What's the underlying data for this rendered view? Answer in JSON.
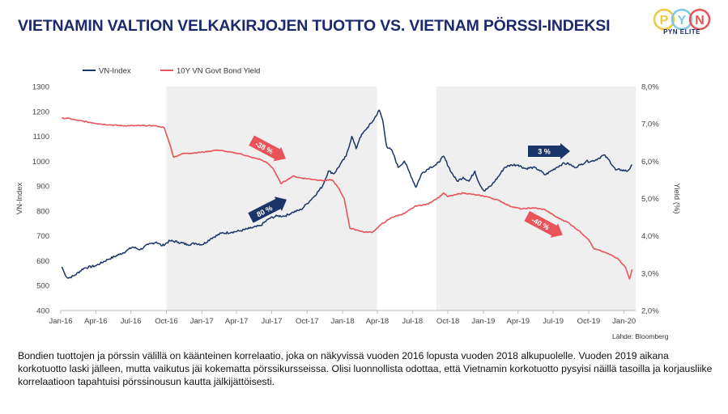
{
  "title": "VIETNAMIN VALTION VELKAKIRJOJEN TUOTTO VS. VIETNAM PÖRSSI-INDEKSI",
  "logo": {
    "letters": [
      "P",
      "Y",
      "N"
    ],
    "subtitle": "PYN ELITE",
    "colors": [
      "#f4c63d",
      "#7ec8e3",
      "#e8545a"
    ]
  },
  "source": "Lähde: Bloomberg",
  "note": "Bondien tuottojen ja pörssin välillä on käänteinen korrelaatio, joka on näkyvissä vuoden 2016 lopusta vuoden 2018 alkupuolelle. Vuoden 2019 aikana korkotuotto laski jälleen, mutta vaikutus jäi kokematta pörssikursseissa. Olisi luonnollista odottaa, että Vietnamin korkotuotto pysyisi näillä tasoilla ja korjausliike korrelaatioon tapahtuisi pörssinousun kautta jälkijättöisesti.",
  "chart_data": {
    "type": "line",
    "x_tick_labels": [
      "Jan-16",
      "Apr-16",
      "Jul-16",
      "Oct-16",
      "Jan-17",
      "Apr-17",
      "Jul-17",
      "Oct-17",
      "Jan-18",
      "Apr-18",
      "Jul-18",
      "Oct-18",
      "Jan-19",
      "Apr-19",
      "Jul-19",
      "Oct-19",
      "Jan-20"
    ],
    "x_range": [
      "2016-01-01",
      "2020-01-31"
    ],
    "ylabel_left": "VN-Index",
    "ylabel_right": "Yield (%)",
    "ylim_left": [
      400,
      1300
    ],
    "ylim_right": [
      2.0,
      8.0
    ],
    "y_left_ticks": [
      "400",
      "500",
      "600",
      "700",
      "800",
      "900",
      "1000",
      "1100",
      "1200",
      "1300"
    ],
    "y_right_ticks": [
      "2,0%",
      "3,0%",
      "4,0%",
      "5,0%",
      "6,0%",
      "7,0%",
      "8,0%"
    ],
    "legend_position": "top-left",
    "grid": false,
    "shaded_periods": [
      [
        "2016-10-01",
        "2018-03-31"
      ],
      [
        "2018-09-01",
        "2020-01-31"
      ]
    ],
    "series": [
      {
        "name": "VN-Index",
        "axis": "left",
        "color": "#1a3668",
        "points": [
          [
            "2016-01-04",
            575
          ],
          [
            "2016-01-12",
            545
          ],
          [
            "2016-01-20",
            530
          ],
          [
            "2016-02-05",
            540
          ],
          [
            "2016-03-01",
            570
          ],
          [
            "2016-04-01",
            580
          ],
          [
            "2016-05-02",
            605
          ],
          [
            "2016-06-01",
            625
          ],
          [
            "2016-06-20",
            640
          ],
          [
            "2016-07-05",
            655
          ],
          [
            "2016-07-25",
            645
          ],
          [
            "2016-08-15",
            665
          ],
          [
            "2016-09-05",
            675
          ],
          [
            "2016-09-20",
            660
          ],
          [
            "2016-10-10",
            680
          ],
          [
            "2016-11-01",
            675
          ],
          [
            "2016-11-25",
            665
          ],
          [
            "2016-12-15",
            670
          ],
          [
            "2017-01-03",
            665
          ],
          [
            "2017-01-25",
            690
          ],
          [
            "2017-02-20",
            710
          ],
          [
            "2017-03-20",
            715
          ],
          [
            "2017-04-10",
            720
          ],
          [
            "2017-05-05",
            730
          ],
          [
            "2017-06-01",
            740
          ],
          [
            "2017-06-25",
            770
          ],
          [
            "2017-07-15",
            780
          ],
          [
            "2017-08-05",
            780
          ],
          [
            "2017-08-25",
            795
          ],
          [
            "2017-09-15",
            805
          ],
          [
            "2017-10-01",
            830
          ],
          [
            "2017-10-20",
            860
          ],
          [
            "2017-11-10",
            900
          ],
          [
            "2017-11-25",
            960
          ],
          [
            "2017-12-10",
            950
          ],
          [
            "2017-12-25",
            985
          ],
          [
            "2018-01-10",
            1020
          ],
          [
            "2018-01-25",
            1100
          ],
          [
            "2018-02-05",
            1050
          ],
          [
            "2018-02-15",
            1095
          ],
          [
            "2018-03-01",
            1125
          ],
          [
            "2018-03-20",
            1160
          ],
          [
            "2018-04-06",
            1205
          ],
          [
            "2018-04-15",
            1165
          ],
          [
            "2018-04-25",
            1060
          ],
          [
            "2018-05-10",
            1040
          ],
          [
            "2018-05-25",
            975
          ],
          [
            "2018-06-10",
            1000
          ],
          [
            "2018-06-25",
            950
          ],
          [
            "2018-07-10",
            895
          ],
          [
            "2018-07-25",
            950
          ],
          [
            "2018-08-15",
            975
          ],
          [
            "2018-09-01",
            985
          ],
          [
            "2018-09-20",
            1020
          ],
          [
            "2018-10-10",
            955
          ],
          [
            "2018-10-25",
            920
          ],
          [
            "2018-11-10",
            935
          ],
          [
            "2018-11-25",
            920
          ],
          [
            "2018-12-10",
            960
          ],
          [
            "2018-12-20",
            915
          ],
          [
            "2019-01-03",
            880
          ],
          [
            "2019-01-20",
            900
          ],
          [
            "2019-02-10",
            940
          ],
          [
            "2019-02-25",
            975
          ],
          [
            "2019-03-15",
            985
          ],
          [
            "2019-04-01",
            985
          ],
          [
            "2019-04-20",
            970
          ],
          [
            "2019-05-10",
            975
          ],
          [
            "2019-05-25",
            965
          ],
          [
            "2019-06-10",
            945
          ],
          [
            "2019-06-25",
            960
          ],
          [
            "2019-07-10",
            975
          ],
          [
            "2019-07-25",
            990
          ],
          [
            "2019-08-10",
            990
          ],
          [
            "2019-08-25",
            975
          ],
          [
            "2019-09-10",
            985
          ],
          [
            "2019-09-25",
            1000
          ],
          [
            "2019-10-10",
            1000
          ],
          [
            "2019-10-25",
            1010
          ],
          [
            "2019-11-10",
            1025
          ],
          [
            "2019-11-25",
            1000
          ],
          [
            "2019-12-10",
            965
          ],
          [
            "2019-12-25",
            965
          ],
          [
            "2020-01-10",
            960
          ],
          [
            "2020-01-22",
            985
          ]
        ]
      },
      {
        "name": "10Y VN Govt Bond Yield",
        "axis": "right",
        "color": "#e8545a",
        "points": [
          [
            "2016-01-04",
            7.15
          ],
          [
            "2016-01-20",
            7.15
          ],
          [
            "2016-02-10",
            7.1
          ],
          [
            "2016-03-10",
            7.05
          ],
          [
            "2016-04-10",
            7.0
          ],
          [
            "2016-05-10",
            6.97
          ],
          [
            "2016-06-10",
            6.95
          ],
          [
            "2016-07-10",
            6.95
          ],
          [
            "2016-08-10",
            6.95
          ],
          [
            "2016-09-01",
            6.95
          ],
          [
            "2016-09-25",
            6.9
          ],
          [
            "2016-10-10",
            6.45
          ],
          [
            "2016-10-20",
            6.1
          ],
          [
            "2016-11-10",
            6.2
          ],
          [
            "2016-12-10",
            6.22
          ],
          [
            "2017-01-10",
            6.25
          ],
          [
            "2017-02-10",
            6.3
          ],
          [
            "2017-03-10",
            6.25
          ],
          [
            "2017-04-10",
            6.2
          ],
          [
            "2017-05-10",
            6.1
          ],
          [
            "2017-06-01",
            6.05
          ],
          [
            "2017-06-20",
            5.95
          ],
          [
            "2017-07-05",
            5.8
          ],
          [
            "2017-07-25",
            5.4
          ],
          [
            "2017-08-10",
            5.5
          ],
          [
            "2017-08-25",
            5.6
          ],
          [
            "2017-09-15",
            5.55
          ],
          [
            "2017-10-10",
            5.52
          ],
          [
            "2017-11-10",
            5.48
          ],
          [
            "2017-12-05",
            5.5
          ],
          [
            "2017-12-20",
            5.3
          ],
          [
            "2018-01-05",
            5.0
          ],
          [
            "2018-01-20",
            4.2
          ],
          [
            "2018-02-10",
            4.15
          ],
          [
            "2018-02-25",
            4.1
          ],
          [
            "2018-03-20",
            4.1
          ],
          [
            "2018-04-10",
            4.3
          ],
          [
            "2018-05-10",
            4.5
          ],
          [
            "2018-06-10",
            4.6
          ],
          [
            "2018-07-10",
            4.8
          ],
          [
            "2018-08-10",
            4.85
          ],
          [
            "2018-08-25",
            4.95
          ],
          [
            "2018-09-10",
            5.05
          ],
          [
            "2018-09-20",
            5.15
          ],
          [
            "2018-10-01",
            5.05
          ],
          [
            "2018-10-20",
            5.1
          ],
          [
            "2018-11-10",
            5.15
          ],
          [
            "2018-12-10",
            5.1
          ],
          [
            "2019-01-10",
            5.05
          ],
          [
            "2019-02-10",
            4.95
          ],
          [
            "2019-03-10",
            4.8
          ],
          [
            "2019-04-10",
            4.72
          ],
          [
            "2019-05-10",
            4.75
          ],
          [
            "2019-06-10",
            4.7
          ],
          [
            "2019-07-10",
            4.5
          ],
          [
            "2019-08-10",
            4.35
          ],
          [
            "2019-09-10",
            4.1
          ],
          [
            "2019-10-01",
            3.9
          ],
          [
            "2019-10-15",
            3.65
          ],
          [
            "2019-11-01",
            3.6
          ],
          [
            "2019-11-25",
            3.5
          ],
          [
            "2019-12-15",
            3.4
          ],
          [
            "2020-01-05",
            3.15
          ],
          [
            "2020-01-15",
            2.85
          ],
          [
            "2020-01-22",
            3.1
          ]
        ]
      }
    ],
    "annotations": [
      {
        "text": "-38 %",
        "color": "#e8545a"
      },
      {
        "text": "80 %",
        "color": "#1a3668"
      },
      {
        "text": "3 %",
        "color": "#1a3668"
      },
      {
        "text": "-40 %",
        "color": "#e8545a"
      }
    ]
  }
}
